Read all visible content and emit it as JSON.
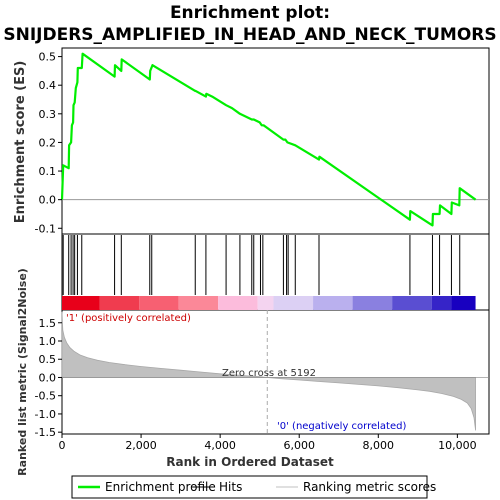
{
  "chart_data": {
    "type": "line",
    "title_line1": "Enrichment plot:",
    "title_line2": "SNIJDERS_AMPLIFIED_IN_HEAD_AND_NECK_TUMORS",
    "es_ylabel": "Enrichment score (ES)",
    "metric_ylabel": "Ranked list metric (Signal2Noise)",
    "xlabel": "Rank in Ordered Dataset",
    "xlim": [
      0,
      10800
    ],
    "x_ticks": [
      {
        "value": 0,
        "label": "0"
      },
      {
        "value": 2000,
        "label": "2,000"
      },
      {
        "value": 4000,
        "label": "4,000"
      },
      {
        "value": 6000,
        "label": "6,000"
      },
      {
        "value": 8000,
        "label": "8,000"
      },
      {
        "value": 10000,
        "label": "10,000"
      }
    ],
    "es_ylim": [
      -0.12,
      0.53
    ],
    "es_ticks": [
      {
        "value": -0.1,
        "label": "-0.1"
      },
      {
        "value": 0.0,
        "label": "0.0"
      },
      {
        "value": 0.1,
        "label": "0.1"
      },
      {
        "value": 0.2,
        "label": "0.2"
      },
      {
        "value": 0.3,
        "label": "0.3"
      },
      {
        "value": 0.4,
        "label": "0.4"
      },
      {
        "value": 0.5,
        "label": "0.5"
      }
    ],
    "metric_ylim": [
      -1.55,
      1.85
    ],
    "metric_ticks": [
      {
        "value": -1.5,
        "label": "-1.5"
      },
      {
        "value": -1.0,
        "label": "-1.0"
      },
      {
        "value": -0.5,
        "label": "-0.5"
      },
      {
        "value": 0.0,
        "label": "0.0"
      },
      {
        "value": 0.5,
        "label": "0.5"
      },
      {
        "value": 1.0,
        "label": "1.0"
      },
      {
        "value": 1.5,
        "label": "1.5"
      }
    ],
    "series": [
      {
        "name": "Enrichment profile",
        "color": "#00ee00",
        "x": [
          0,
          30,
          170,
          180,
          230,
          250,
          280,
          290,
          320,
          350,
          390,
          400,
          500,
          520,
          1330,
          1340,
          1500,
          1510,
          2220,
          2230,
          2290,
          3370,
          3380,
          3640,
          3650,
          3800,
          4150,
          4300,
          4500,
          4800,
          4850,
          5000,
          5050,
          5100,
          5600,
          5650,
          5700,
          5900,
          6500,
          6510,
          8800,
          8810,
          9370,
          9380,
          9550,
          9560,
          9850,
          9860,
          10050,
          10060,
          10460
        ],
        "y": [
          0.0,
          0.12,
          0.11,
          0.19,
          0.2,
          0.26,
          0.27,
          0.33,
          0.34,
          0.39,
          0.41,
          0.46,
          0.46,
          0.51,
          0.43,
          0.47,
          0.45,
          0.49,
          0.42,
          0.45,
          0.47,
          0.38,
          0.38,
          0.36,
          0.37,
          0.36,
          0.33,
          0.32,
          0.3,
          0.28,
          0.28,
          0.27,
          0.26,
          0.26,
          0.21,
          0.21,
          0.2,
          0.19,
          0.14,
          0.15,
          -0.07,
          -0.04,
          -0.09,
          -0.05,
          -0.05,
          -0.02,
          -0.05,
          -0.01,
          -0.02,
          0.04,
          0.0
        ]
      }
    ],
    "hits": [
      30,
      170,
      230,
      280,
      320,
      390,
      500,
      1330,
      1500,
      2220,
      2270,
      3370,
      3640,
      4150,
      4500,
      4800,
      4850,
      5020,
      5080,
      5600,
      5680,
      5720,
      5900,
      6500,
      8800,
      9370,
      9550,
      9850,
      10060
    ],
    "metric_profile": {
      "x": [
        0,
        20,
        60,
        120,
        200,
        300,
        450,
        650,
        900,
        1200,
        1600,
        2000,
        2500,
        3000,
        3500,
        4000,
        4500,
        5000,
        5192,
        5500,
        6000,
        6500,
        7000,
        7500,
        8000,
        8500,
        9000,
        9300,
        9600,
        9900,
        10100,
        10250,
        10350,
        10420,
        10460
      ],
      "y": [
        1.8,
        1.3,
        1.1,
        0.95,
        0.82,
        0.72,
        0.62,
        0.54,
        0.47,
        0.41,
        0.35,
        0.3,
        0.25,
        0.2,
        0.15,
        0.1,
        0.06,
        0.02,
        0.0,
        -0.03,
        -0.07,
        -0.11,
        -0.15,
        -0.19,
        -0.23,
        -0.28,
        -0.34,
        -0.38,
        -0.44,
        -0.52,
        -0.6,
        -0.7,
        -0.85,
        -1.1,
        -1.45
      ]
    },
    "zero_cross": 5192,
    "zero_cross_label": "Zero cross at 5192",
    "pos_label": "'1' (positively correlated)",
    "neg_label": "'0' (negatively correlated)",
    "color_band": [
      {
        "x0": 0,
        "x1": 950,
        "color": "#e8001a"
      },
      {
        "x0": 950,
        "x1": 1950,
        "color": "#f03c4f"
      },
      {
        "x0": 1950,
        "x1": 2950,
        "color": "#f76072"
      },
      {
        "x0": 2950,
        "x1": 3950,
        "color": "#fb8898"
      },
      {
        "x0": 3950,
        "x1": 4950,
        "color": "#fcbcdc"
      },
      {
        "x0": 4950,
        "x1": 5350,
        "color": "#f4d4f0"
      },
      {
        "x0": 5350,
        "x1": 6350,
        "color": "#dcd0f4"
      },
      {
        "x0": 6350,
        "x1": 7350,
        "color": "#bab0ee"
      },
      {
        "x0": 7350,
        "x1": 8350,
        "color": "#8a80e0"
      },
      {
        "x0": 8350,
        "x1": 9350,
        "color": "#5a4ed2"
      },
      {
        "x0": 9350,
        "x1": 9850,
        "color": "#3624c8"
      },
      {
        "x0": 9850,
        "x1": 10460,
        "color": "#1800c0"
      }
    ],
    "legend": [
      {
        "label": "Enrichment profile",
        "color": "#00ee00"
      },
      {
        "label": "Hits",
        "color": "#000000"
      },
      {
        "label": "Ranking metric scores",
        "color": "#c0c0c0"
      }
    ]
  }
}
